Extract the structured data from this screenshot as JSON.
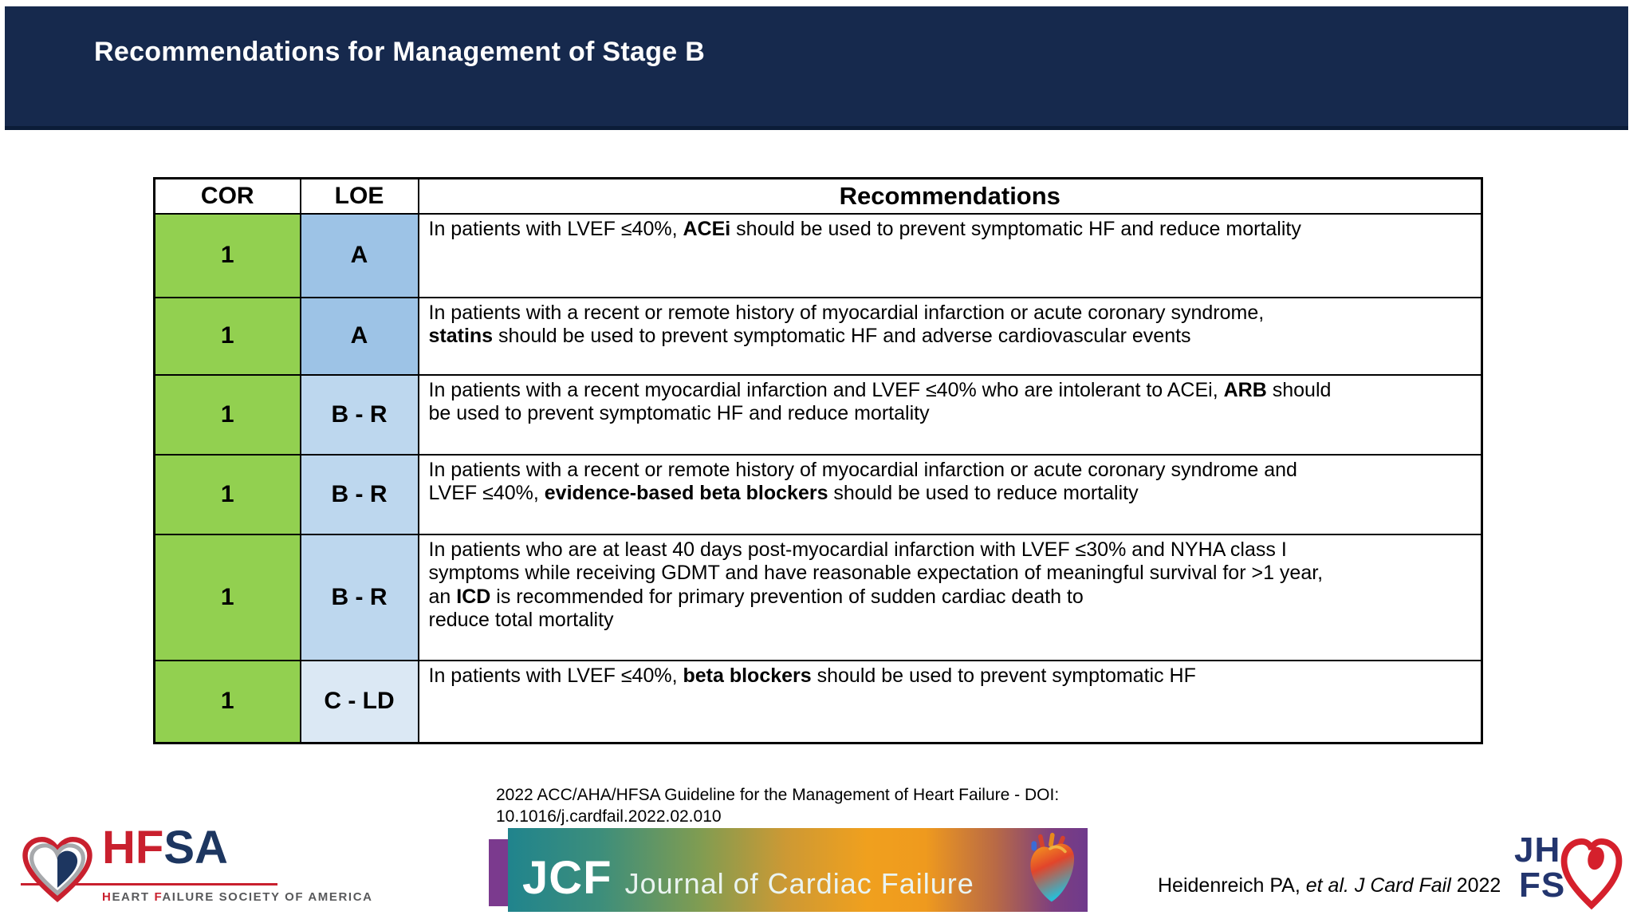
{
  "slide": {
    "title": "Recommendations for Management of Stage B"
  },
  "table": {
    "headers": {
      "cor": "COR",
      "loe": "LOE",
      "recommendations": "Recommendations"
    },
    "rows": [
      {
        "cor": "1",
        "loe": "A",
        "loe_color": "#9dc3e6",
        "text": [
          {
            "t": "In patients with LVEF ≤40%, "
          },
          {
            "t": "ACEi",
            "b": true
          },
          {
            "t": " should be used to prevent symptomatic HF and reduce mortality"
          }
        ]
      },
      {
        "cor": "1",
        "loe": "A",
        "loe_color": "#9dc3e6",
        "text": [
          {
            "t": "In patients with a recent or remote history of myocardial infarction or acute coronary syndrome,",
            "br": true
          },
          {
            "t": "statins",
            "b": true
          },
          {
            "t": " should be used to prevent symptomatic HF and adverse cardiovascular events"
          }
        ]
      },
      {
        "cor": "1",
        "loe": "B - R",
        "loe_color": "#bdd7ee",
        "text": [
          {
            "t": "In patients with a recent myocardial infarction and LVEF ≤40% who are intolerant to ACEi, "
          },
          {
            "t": "ARB",
            "b": true
          },
          {
            "t": " should",
            "br": true
          },
          {
            "t": "be used to prevent symptomatic HF and reduce mortality"
          }
        ]
      },
      {
        "cor": "1",
        "loe": "B - R",
        "loe_color": "#bdd7ee",
        "text": [
          {
            "t": "In patients with a recent or remote history of myocardial infarction or acute coronary syndrome and",
            "br": true
          },
          {
            "t": "LVEF ≤40%, "
          },
          {
            "t": "evidence-based beta blockers",
            "b": true
          },
          {
            "t": " should be used to reduce mortality"
          }
        ]
      },
      {
        "cor": "1",
        "loe": "B - R",
        "loe_color": "#bdd7ee",
        "text": [
          {
            "t": "In patients who are at least 40 days post-myocardial infarction with LVEF ≤30% and NYHA class I",
            "br": true
          },
          {
            "t": "symptoms while receiving GDMT and have reasonable expectation of meaningful survival for >1 year,",
            "br": true
          },
          {
            "t": "an "
          },
          {
            "t": "ICD",
            "b": true
          },
          {
            "t": " is recommended for primary prevention of sudden cardiac death to",
            "br": true
          },
          {
            "t": "reduce total mortality"
          }
        ]
      },
      {
        "cor": "1",
        "loe": "C - LD",
        "loe_color": "#dbe8f4",
        "text": [
          {
            "t": "In patients with LVEF ≤40%, "
          },
          {
            "t": "beta blockers",
            "b": true
          },
          {
            "t": " should be used to prevent symptomatic HF"
          }
        ]
      }
    ]
  },
  "citation": {
    "line1": "2022 ACC/AHA/HFSA Guideline for the Management of Heart Failure - DOI:",
    "line2": "10.1016/j.cardfail.2022.02.010"
  },
  "reference": {
    "prefix": "Heidenreich PA, ",
    "italic": "et al. J Card Fail",
    "suffix": " 2022"
  },
  "logos": {
    "hfsa": {
      "name_segments": [
        {
          "t": "HF",
          "c": "red"
        },
        {
          "t": "SA",
          "c": "navy"
        }
      ],
      "tagline_segments": [
        {
          "t": "H",
          "c": "red"
        },
        {
          "t": "EART ",
          "c": "gray"
        },
        {
          "t": "F",
          "c": "red"
        },
        {
          "t": "AILURE SOCIETY OF AMERICA",
          "c": "gray"
        }
      ]
    },
    "jcf": {
      "abbr": "JCF",
      "name": "Journal of Cardiac Failure"
    },
    "jhfs": {
      "line1": "JH",
      "line2": "FS"
    }
  },
  "colors": {
    "header_navy": "#16294d",
    "cor_green": "#92d050",
    "loe_a_blue": "#9dc3e6",
    "loe_br_blue": "#bdd7ee",
    "loe_cld_blue": "#dbe8f4",
    "hfsa_red": "#c9202e",
    "hfsa_navy": "#1d3660",
    "jcf_purple": "#7b3a8e",
    "jhfs_navy": "#23356e"
  }
}
